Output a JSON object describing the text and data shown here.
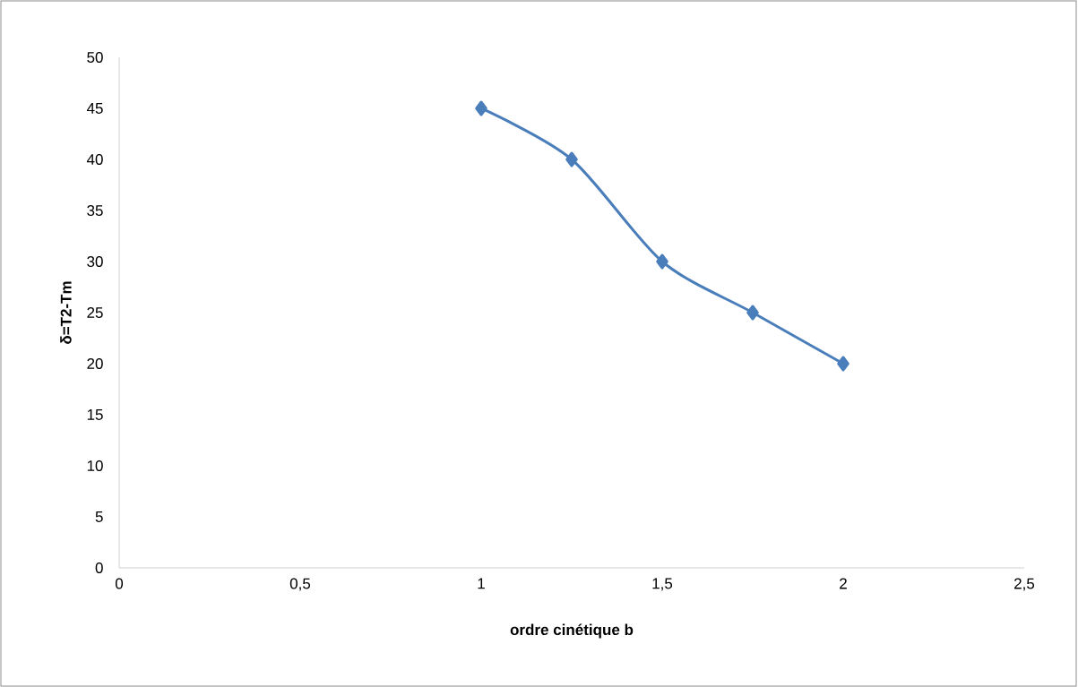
{
  "chart_data": {
    "type": "line",
    "xlabel": "ordre cinétique b",
    "ylabel": "δ=T2-Tm",
    "x": [
      1,
      1.25,
      1.5,
      1.75,
      2
    ],
    "series": [
      {
        "color": "#4a7ebb",
        "values": [
          45,
          40,
          30,
          25,
          20
        ]
      }
    ],
    "xlim": [
      0,
      2.5
    ],
    "ylim": [
      0,
      50
    ],
    "xticks": [
      0,
      {
        "value": 0.5,
        "label": "0,5"
      },
      1,
      {
        "value": 1.5,
        "label": "1,5"
      },
      2,
      {
        "value": 2.5,
        "label": "2,5"
      }
    ],
    "yticks": [
      0,
      5,
      10,
      15,
      20,
      25,
      30,
      35,
      40,
      45,
      50
    ],
    "grid": false,
    "legend": false,
    "marker": "diamond",
    "line_style": "solid"
  }
}
